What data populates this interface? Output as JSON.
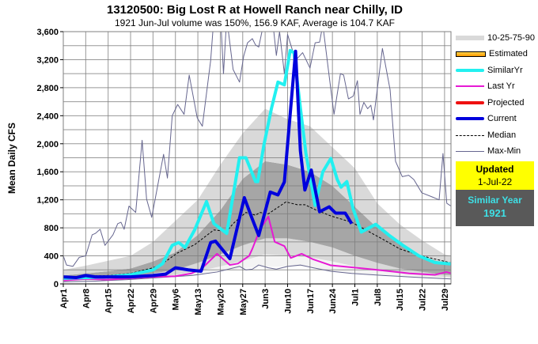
{
  "chart_data": {
    "type": "line",
    "title": "13120500: Big Lost R at Howell Ranch near Chilly, ID",
    "subtitle": "1921 Jun-Jul volume was 150%, 156.9 KAF, Average is 104.7 KAF",
    "ylabel": "Mean Daily CFS",
    "xlabel": "",
    "x_units": "days since Apr1",
    "xlim": [
      0,
      121
    ],
    "ylim": [
      0,
      3600
    ],
    "yticks": [
      0,
      400,
      800,
      1200,
      1600,
      2000,
      2400,
      2800,
      3200,
      3600
    ],
    "ytick_labels": [
      "0",
      "400",
      "800",
      "1,200",
      "1,600",
      "2,000",
      "2,400",
      "2,800",
      "3,200",
      "3,600"
    ],
    "ygrid_step": 200,
    "xticks": [
      0,
      7,
      14,
      21,
      28,
      35,
      42,
      49,
      56,
      63,
      70,
      77,
      84,
      91,
      98,
      105,
      112,
      119
    ],
    "xtick_labels": [
      "Apr1",
      "Apr8",
      "Apr15",
      "Apr22",
      "Apr29",
      "May6",
      "May13",
      "May20",
      "May27",
      "Jun3",
      "Jun10",
      "Jun17",
      "Jun24",
      "Jul1",
      "Jul8",
      "Jul15",
      "Jul22",
      "Jul29"
    ],
    "grid": true,
    "legend_position": "right",
    "bands": {
      "days": [
        0,
        7,
        14,
        21,
        28,
        35,
        42,
        49,
        56,
        63,
        70,
        77,
        84,
        91,
        98,
        105,
        112,
        119,
        121
      ],
      "p90": [
        200,
        260,
        330,
        400,
        600,
        900,
        1200,
        1700,
        2150,
        2500,
        2350,
        2250,
        1950,
        1650,
        1150,
        850,
        620,
        420,
        400
      ],
      "p75": [
        120,
        150,
        180,
        220,
        320,
        450,
        700,
        1050,
        1500,
        1750,
        1700,
        1600,
        1400,
        1100,
        800,
        560,
        400,
        290,
        280
      ],
      "p25": [
        70,
        80,
        90,
        110,
        150,
        200,
        300,
        420,
        550,
        650,
        650,
        600,
        520,
        400,
        300,
        220,
        170,
        130,
        125
      ],
      "p10": [
        50,
        55,
        60,
        75,
        100,
        130,
        180,
        250,
        330,
        420,
        400,
        380,
        320,
        250,
        190,
        150,
        120,
        100,
        95
      ]
    },
    "series": [
      {
        "name": "Max",
        "color": "#66668f",
        "width": 1,
        "points": [
          [
            0,
            400
          ],
          [
            1,
            270
          ],
          [
            3,
            250
          ],
          [
            5,
            380
          ],
          [
            7,
            400
          ],
          [
            9,
            700
          ],
          [
            10,
            720
          ],
          [
            11.5,
            780
          ],
          [
            13,
            550
          ],
          [
            15.5,
            700
          ],
          [
            17,
            860
          ],
          [
            18,
            880
          ],
          [
            19,
            780
          ],
          [
            20.5,
            1110
          ],
          [
            22.6,
            1020
          ],
          [
            24.6,
            2050
          ],
          [
            26,
            1210
          ],
          [
            27.6,
            950
          ],
          [
            29.7,
            1460
          ],
          [
            31.3,
            1850
          ],
          [
            32.5,
            1510
          ],
          [
            34,
            2400
          ],
          [
            35.7,
            2560
          ],
          [
            37.7,
            2420
          ],
          [
            39.3,
            2980
          ],
          [
            41.8,
            2370
          ],
          [
            43.4,
            2250
          ],
          [
            46,
            3190
          ],
          [
            47,
            3800
          ],
          [
            49,
            3900
          ],
          [
            50,
            3000
          ],
          [
            51,
            3800
          ],
          [
            53,
            3060
          ],
          [
            55,
            2880
          ],
          [
            56.3,
            3250
          ],
          [
            57.5,
            3440
          ],
          [
            59,
            3500
          ],
          [
            60,
            3410
          ],
          [
            61,
            3380
          ],
          [
            62,
            3600
          ],
          [
            65,
            3900
          ],
          [
            66.5,
            3260
          ],
          [
            67.5,
            3600
          ],
          [
            69,
            3000
          ],
          [
            70,
            3560
          ],
          [
            72.5,
            3190
          ],
          [
            74.7,
            3300
          ],
          [
            77,
            3080
          ],
          [
            78.6,
            3440
          ],
          [
            80,
            3450
          ],
          [
            81,
            3700
          ],
          [
            83,
            2960
          ],
          [
            84.5,
            2420
          ],
          [
            86.5,
            3000
          ],
          [
            87.5,
            2980
          ],
          [
            89,
            2640
          ],
          [
            90.5,
            2680
          ],
          [
            91.8,
            2900
          ],
          [
            92.6,
            2420
          ],
          [
            93.8,
            2590
          ],
          [
            95,
            2500
          ],
          [
            96,
            2550
          ],
          [
            96.8,
            2340
          ],
          [
            99.6,
            3360
          ],
          [
            102,
            2770
          ],
          [
            103.7,
            1750
          ],
          [
            105.8,
            1530
          ],
          [
            107.8,
            1550
          ],
          [
            109.4,
            1490
          ],
          [
            111.9,
            1300
          ],
          [
            115.2,
            1240
          ],
          [
            117.3,
            1200
          ],
          [
            118.5,
            1860
          ],
          [
            119.7,
            1150
          ],
          [
            121,
            1110
          ]
        ]
      },
      {
        "name": "Min",
        "color": "#66668f",
        "width": 1,
        "points": [
          [
            0,
            30
          ],
          [
            10,
            40
          ],
          [
            20,
            60
          ],
          [
            30,
            90
          ],
          [
            40,
            120
          ],
          [
            48,
            170
          ],
          [
            55,
            250
          ],
          [
            57,
            200
          ],
          [
            59,
            210
          ],
          [
            61,
            270
          ],
          [
            64,
            230
          ],
          [
            66.5,
            210
          ],
          [
            70,
            250
          ],
          [
            74,
            270
          ],
          [
            78,
            230
          ],
          [
            83.5,
            180
          ],
          [
            90,
            150
          ],
          [
            100,
            120
          ],
          [
            110,
            95
          ],
          [
            121,
            70
          ]
        ]
      },
      {
        "name": "Median",
        "color": "#000000",
        "width": 1,
        "dash": "3,2",
        "points": [
          [
            0,
            100
          ],
          [
            7,
            110
          ],
          [
            14,
            120
          ],
          [
            21,
            150
          ],
          [
            28,
            230
          ],
          [
            31,
            290
          ],
          [
            35.6,
            440
          ],
          [
            41,
            560
          ],
          [
            47,
            770
          ],
          [
            51,
            750
          ],
          [
            53,
            860
          ],
          [
            57,
            1020
          ],
          [
            60,
            980
          ],
          [
            61.4,
            1020
          ],
          [
            64,
            1000
          ],
          [
            69.5,
            1170
          ],
          [
            73,
            1130
          ],
          [
            75.4,
            1130
          ],
          [
            78.6,
            1060
          ],
          [
            83.5,
            970
          ],
          [
            90,
            880
          ],
          [
            94,
            780
          ],
          [
            100,
            630
          ],
          [
            105,
            500
          ],
          [
            111,
            410
          ],
          [
            121,
            300
          ]
        ]
      },
      {
        "name": "Last Yr",
        "color": "#e619d4",
        "width": 2,
        "points": [
          [
            0,
            50
          ],
          [
            7,
            70
          ],
          [
            14,
            60
          ],
          [
            21,
            80
          ],
          [
            28,
            100
          ],
          [
            35,
            110
          ],
          [
            40,
            150
          ],
          [
            43,
            210
          ],
          [
            48,
            430
          ],
          [
            52,
            270
          ],
          [
            54.5,
            290
          ],
          [
            58,
            400
          ],
          [
            59,
            500
          ],
          [
            61.4,
            780
          ],
          [
            64,
            960
          ],
          [
            66,
            600
          ],
          [
            69,
            540
          ],
          [
            71,
            370
          ],
          [
            74.4,
            430
          ],
          [
            78,
            350
          ],
          [
            83.5,
            265
          ],
          [
            91.6,
            230
          ],
          [
            100,
            190
          ],
          [
            108,
            150
          ],
          [
            116,
            130
          ],
          [
            119.6,
            170
          ],
          [
            121,
            150
          ]
        ]
      },
      {
        "name": "SimilarYr",
        "color": "#22f0f0",
        "width": 4,
        "points": [
          [
            0,
            80
          ],
          [
            7,
            90
          ],
          [
            14,
            100
          ],
          [
            21,
            130
          ],
          [
            28,
            200
          ],
          [
            31,
            290
          ],
          [
            34,
            550
          ],
          [
            36,
            590
          ],
          [
            38,
            520
          ],
          [
            41,
            770
          ],
          [
            44.7,
            1175
          ],
          [
            47,
            860
          ],
          [
            51,
            720
          ],
          [
            55,
            1800
          ],
          [
            57,
            1800
          ],
          [
            60,
            1460
          ],
          [
            60.7,
            1460
          ],
          [
            62.6,
            1980
          ],
          [
            65,
            2510
          ],
          [
            67,
            2880
          ],
          [
            69,
            2840
          ],
          [
            70.8,
            3330
          ],
          [
            72,
            3300
          ],
          [
            74,
            2510
          ],
          [
            75.7,
            1870
          ],
          [
            78.6,
            1120
          ],
          [
            81,
            1600
          ],
          [
            83.5,
            1790
          ],
          [
            85.5,
            1490
          ],
          [
            86.7,
            1380
          ],
          [
            88.5,
            1460
          ],
          [
            90.4,
            1080
          ],
          [
            93,
            740
          ],
          [
            97.5,
            850
          ],
          [
            101.5,
            700
          ],
          [
            106,
            550
          ],
          [
            111,
            400
          ],
          [
            116,
            305
          ],
          [
            121,
            285
          ]
        ]
      },
      {
        "name": "Current",
        "color": "#0000dd",
        "width": 4,
        "points": [
          [
            0,
            100
          ],
          [
            4,
            90
          ],
          [
            7,
            120
          ],
          [
            10,
            100
          ],
          [
            14,
            100
          ],
          [
            21,
            100
          ],
          [
            28,
            120
          ],
          [
            32,
            140
          ],
          [
            35,
            230
          ],
          [
            39,
            200
          ],
          [
            43,
            180
          ],
          [
            46,
            590
          ],
          [
            47.5,
            610
          ],
          [
            52,
            360
          ],
          [
            56.5,
            1230
          ],
          [
            59,
            925
          ],
          [
            61,
            690
          ],
          [
            64.6,
            1310
          ],
          [
            67,
            1270
          ],
          [
            69,
            1455
          ],
          [
            72.5,
            3320
          ],
          [
            74,
            1900
          ],
          [
            75.4,
            1340
          ],
          [
            77.4,
            1625
          ],
          [
            80,
            1030
          ],
          [
            83,
            1100
          ],
          [
            85,
            1010
          ],
          [
            88,
            1010
          ],
          [
            90,
            860
          ]
        ]
      }
    ],
    "legend": [
      "10-25-75-90",
      "Estimated",
      "SimilarYr",
      "Last Yr",
      "Projected",
      "Current",
      "Median",
      "Max-Min"
    ]
  },
  "updated": {
    "label": "Updated",
    "date": "1-Jul-22"
  },
  "similar": {
    "label": "Similar Year",
    "year": "1921"
  },
  "colors": {
    "band_outer": "#d9d9d9",
    "band_inner": "#a6a6a6",
    "band_low": "#f4f4f4",
    "projected": "#ee1111",
    "grid": "#7f7f7f"
  }
}
